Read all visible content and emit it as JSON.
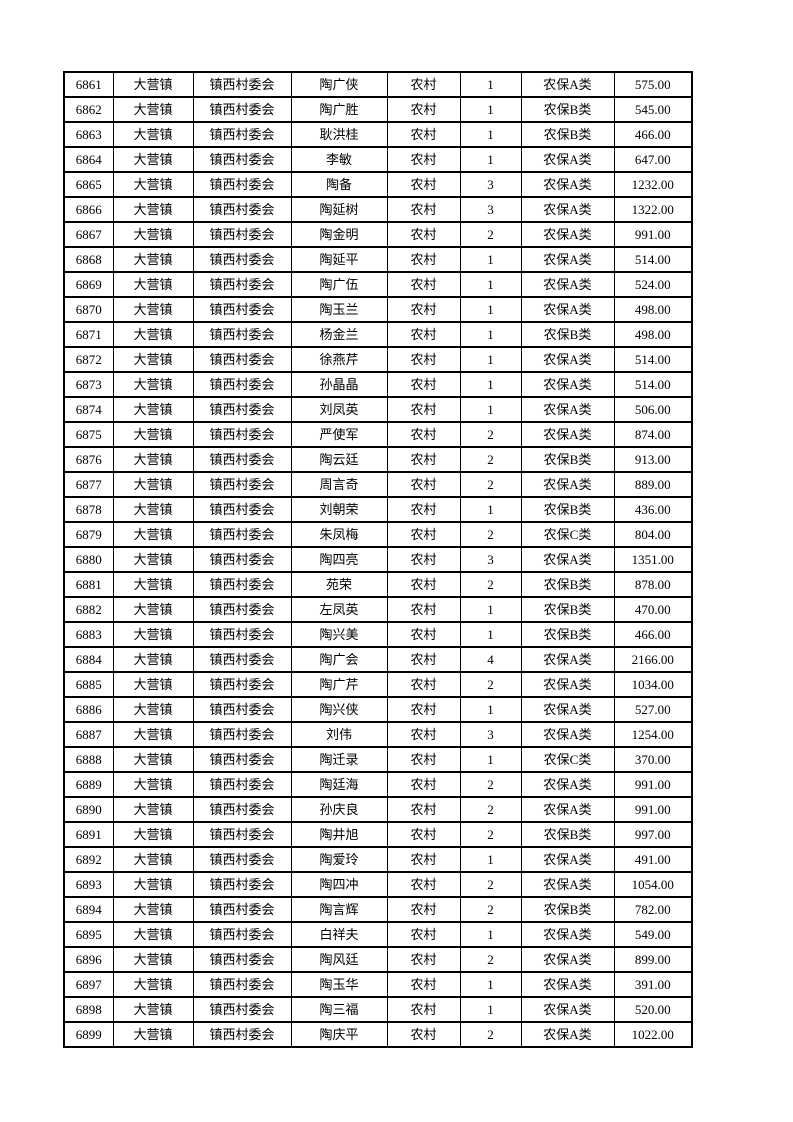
{
  "page": {
    "background_color": "#ffffff",
    "table_border_color": "#000000",
    "text_color": "#000000"
  },
  "table": {
    "rows": [
      [
        "6861",
        "大营镇",
        "镇西村委会",
        "陶广侠",
        "农村",
        "1",
        "农保A类",
        "575.00"
      ],
      [
        "6862",
        "大营镇",
        "镇西村委会",
        "陶广胜",
        "农村",
        "1",
        "农保B类",
        "545.00"
      ],
      [
        "6863",
        "大营镇",
        "镇西村委会",
        "耿洪桂",
        "农村",
        "1",
        "农保B类",
        "466.00"
      ],
      [
        "6864",
        "大营镇",
        "镇西村委会",
        "李敏",
        "农村",
        "1",
        "农保A类",
        "647.00"
      ],
      [
        "6865",
        "大营镇",
        "镇西村委会",
        "陶备",
        "农村",
        "3",
        "农保A类",
        "1232.00"
      ],
      [
        "6866",
        "大营镇",
        "镇西村委会",
        "陶延树",
        "农村",
        "3",
        "农保A类",
        "1322.00"
      ],
      [
        "6867",
        "大营镇",
        "镇西村委会",
        "陶金明",
        "农村",
        "2",
        "农保A类",
        "991.00"
      ],
      [
        "6868",
        "大营镇",
        "镇西村委会",
        "陶延平",
        "农村",
        "1",
        "农保A类",
        "514.00"
      ],
      [
        "6869",
        "大营镇",
        "镇西村委会",
        "陶广伍",
        "农村",
        "1",
        "农保A类",
        "524.00"
      ],
      [
        "6870",
        "大营镇",
        "镇西村委会",
        "陶玉兰",
        "农村",
        "1",
        "农保A类",
        "498.00"
      ],
      [
        "6871",
        "大营镇",
        "镇西村委会",
        "杨金兰",
        "农村",
        "1",
        "农保B类",
        "498.00"
      ],
      [
        "6872",
        "大营镇",
        "镇西村委会",
        "徐燕芹",
        "农村",
        "1",
        "农保A类",
        "514.00"
      ],
      [
        "6873",
        "大营镇",
        "镇西村委会",
        "孙晶晶",
        "农村",
        "1",
        "农保A类",
        "514.00"
      ],
      [
        "6874",
        "大营镇",
        "镇西村委会",
        "刘凤英",
        "农村",
        "1",
        "农保A类",
        "506.00"
      ],
      [
        "6875",
        "大营镇",
        "镇西村委会",
        "严使军",
        "农村",
        "2",
        "农保A类",
        "874.00"
      ],
      [
        "6876",
        "大营镇",
        "镇西村委会",
        "陶云廷",
        "农村",
        "2",
        "农保B类",
        "913.00"
      ],
      [
        "6877",
        "大营镇",
        "镇西村委会",
        "周言奇",
        "农村",
        "2",
        "农保A类",
        "889.00"
      ],
      [
        "6878",
        "大营镇",
        "镇西村委会",
        "刘朝荣",
        "农村",
        "1",
        "农保B类",
        "436.00"
      ],
      [
        "6879",
        "大营镇",
        "镇西村委会",
        "朱凤梅",
        "农村",
        "2",
        "农保C类",
        "804.00"
      ],
      [
        "6880",
        "大营镇",
        "镇西村委会",
        "陶四亮",
        "农村",
        "3",
        "农保A类",
        "1351.00"
      ],
      [
        "6881",
        "大营镇",
        "镇西村委会",
        "苑荣",
        "农村",
        "2",
        "农保B类",
        "878.00"
      ],
      [
        "6882",
        "大营镇",
        "镇西村委会",
        "左凤英",
        "农村",
        "1",
        "农保B类",
        "470.00"
      ],
      [
        "6883",
        "大营镇",
        "镇西村委会",
        "陶兴美",
        "农村",
        "1",
        "农保B类",
        "466.00"
      ],
      [
        "6884",
        "大营镇",
        "镇西村委会",
        "陶广会",
        "农村",
        "4",
        "农保A类",
        "2166.00"
      ],
      [
        "6885",
        "大营镇",
        "镇西村委会",
        "陶广芹",
        "农村",
        "2",
        "农保A类",
        "1034.00"
      ],
      [
        "6886",
        "大营镇",
        "镇西村委会",
        "陶兴侠",
        "农村",
        "1",
        "农保A类",
        "527.00"
      ],
      [
        "6887",
        "大营镇",
        "镇西村委会",
        "刘伟",
        "农村",
        "3",
        "农保A类",
        "1254.00"
      ],
      [
        "6888",
        "大营镇",
        "镇西村委会",
        "陶迁录",
        "农村",
        "1",
        "农保C类",
        "370.00"
      ],
      [
        "6889",
        "大营镇",
        "镇西村委会",
        "陶廷海",
        "农村",
        "2",
        "农保A类",
        "991.00"
      ],
      [
        "6890",
        "大营镇",
        "镇西村委会",
        "孙庆良",
        "农村",
        "2",
        "农保A类",
        "991.00"
      ],
      [
        "6891",
        "大营镇",
        "镇西村委会",
        "陶井旭",
        "农村",
        "2",
        "农保B类",
        "997.00"
      ],
      [
        "6892",
        "大营镇",
        "镇西村委会",
        "陶爱玲",
        "农村",
        "1",
        "农保A类",
        "491.00"
      ],
      [
        "6893",
        "大营镇",
        "镇西村委会",
        "陶四冲",
        "农村",
        "2",
        "农保A类",
        "1054.00"
      ],
      [
        "6894",
        "大营镇",
        "镇西村委会",
        "陶言辉",
        "农村",
        "2",
        "农保B类",
        "782.00"
      ],
      [
        "6895",
        "大营镇",
        "镇西村委会",
        "白祥夫",
        "农村",
        "1",
        "农保A类",
        "549.00"
      ],
      [
        "6896",
        "大营镇",
        "镇西村委会",
        "陶风廷",
        "农村",
        "2",
        "农保A类",
        "899.00"
      ],
      [
        "6897",
        "大营镇",
        "镇西村委会",
        "陶玉华",
        "农村",
        "1",
        "农保A类",
        "391.00"
      ],
      [
        "6898",
        "大营镇",
        "镇西村委会",
        "陶三福",
        "农村",
        "1",
        "农保A类",
        "520.00"
      ],
      [
        "6899",
        "大营镇",
        "镇西村委会",
        "陶庆平",
        "农村",
        "2",
        "农保A类",
        "1022.00"
      ]
    ]
  }
}
